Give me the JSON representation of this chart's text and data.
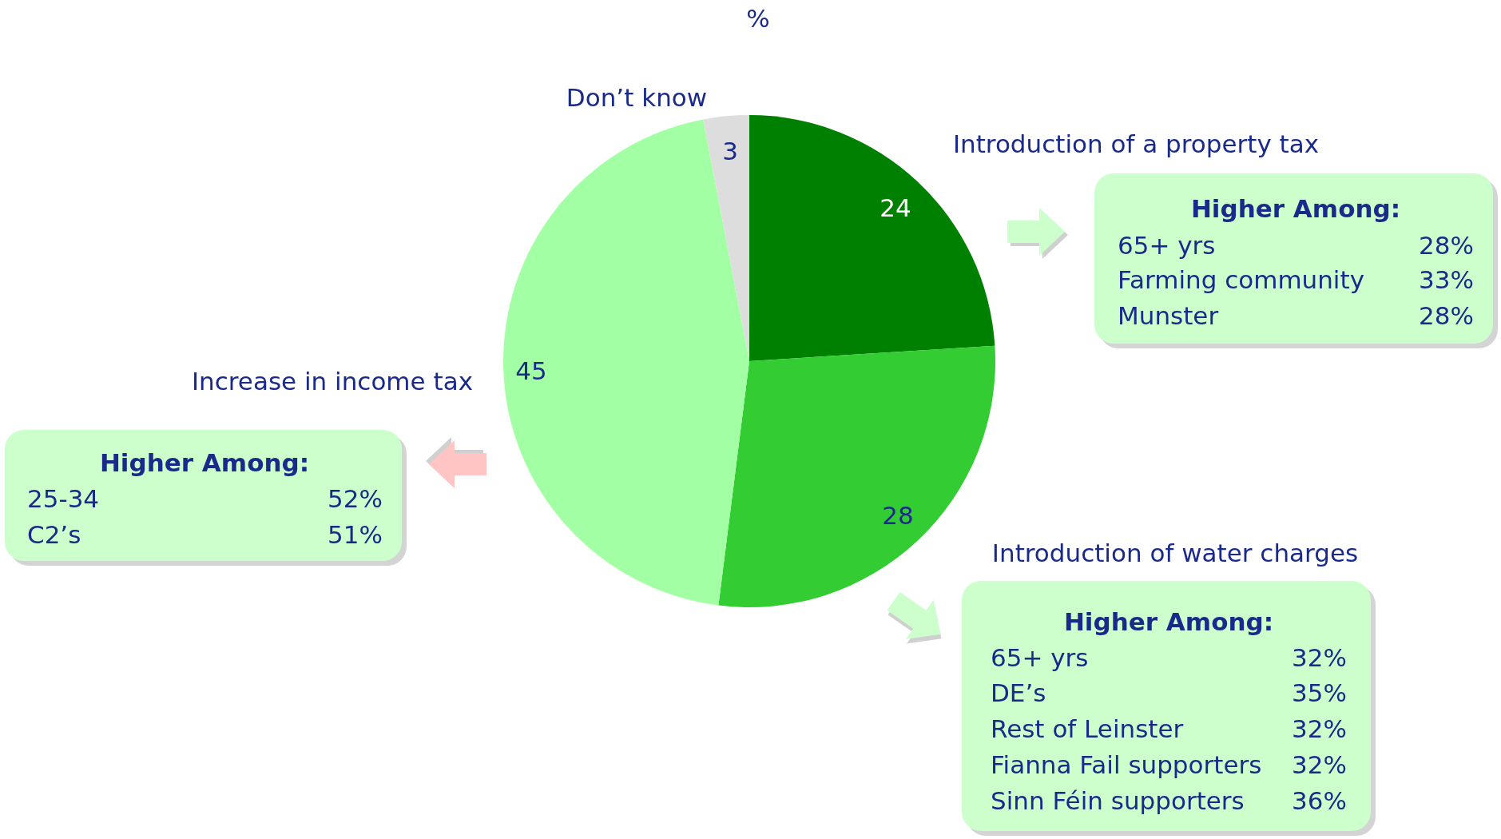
{
  "chart_data": {
    "type": "pie",
    "title": "%",
    "categories": [
      "Introduction of a property tax",
      "Introduction of water charges",
      "Increase in income tax",
      "Don’t know"
    ],
    "values": [
      24,
      28,
      45,
      3
    ],
    "colors": [
      "#008000",
      "#33cc33",
      "#a3ffa3",
      "#dddddd"
    ],
    "data_labels": true,
    "annotations": [
      "Higher Among:",
      "65+ yrs",
      "28%",
      "Farming community",
      "33%",
      "Munster",
      "28%",
      "Higher Among:",
      "25-34",
      "52%",
      "C2’s",
      "51%",
      "Higher Among:",
      "65+ yrs",
      "32%",
      "DE’s",
      "35%",
      "Rest of Leinster",
      "32%",
      "Fianna Fail supporters",
      "32%",
      "Sinn Féin supporters",
      "36%"
    ]
  }
}
